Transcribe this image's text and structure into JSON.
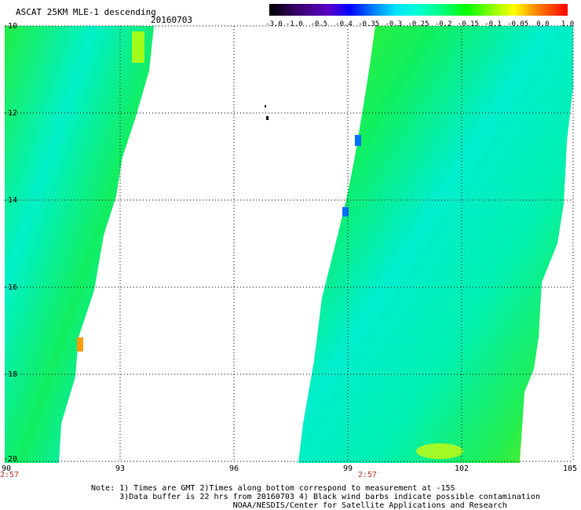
{
  "title": "ASCAT 25KM MLE-1 descending",
  "date": "20160703",
  "colorbar": {
    "labels": [
      "-3.0",
      "-1.0",
      "-0.5",
      "-0.4",
      "-0.35",
      "-0.3",
      "-0.25",
      "-0.2",
      "-0.15",
      "-0.1",
      "-0.05",
      "0.0",
      "1.0"
    ],
    "colors": [
      "#000000",
      "#3a0070",
      "#5a00c8",
      "#0000ff",
      "#0080ff",
      "#00e0ff",
      "#00ffd0",
      "#00ff80",
      "#00ff00",
      "#80ff00",
      "#ffff00",
      "#ff8000",
      "#ff0000"
    ]
  },
  "map": {
    "lon_ticks": [
      "90",
      "93",
      "96",
      "99",
      "102",
      "105"
    ],
    "lat_ticks": [
      "-10",
      "-12",
      "-14",
      "-16",
      "-18",
      "-20"
    ],
    "time_labels": [
      "2:57",
      "2:57"
    ]
  },
  "notes": [
    "Note: 1) Times are GMT 2)Times along bottom correspond to measurement at -15S",
    "      3)Data buffer is 22 hrs from 20160703 4) Black wind barbs indicate possible contamination",
    "                              NOAA/NESDIS/Center for Satellite Applications and Research"
  ]
}
